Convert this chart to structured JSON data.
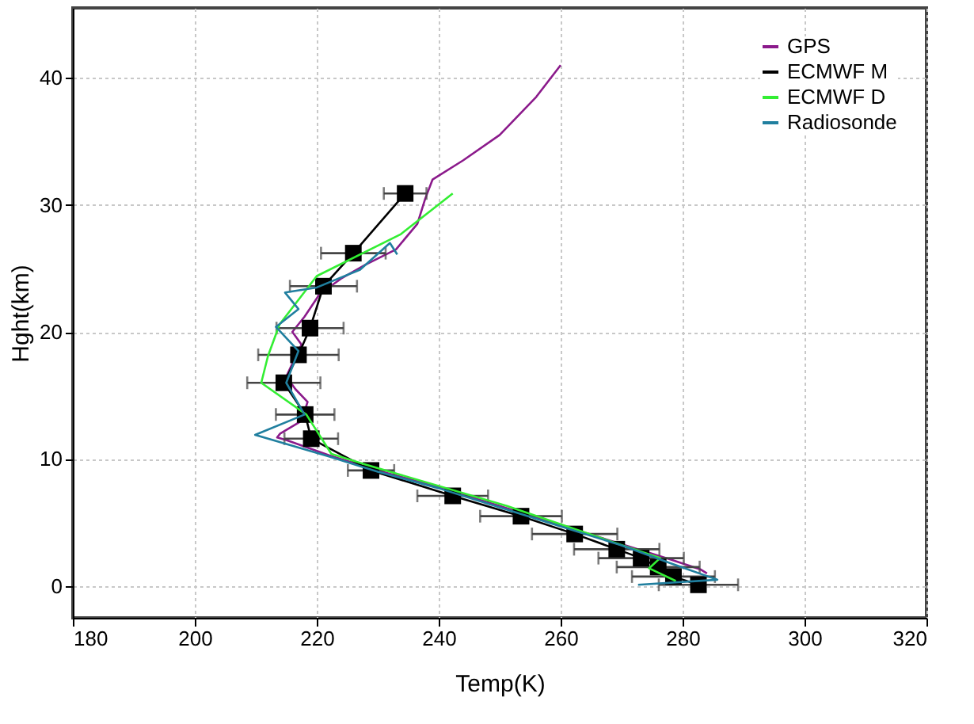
{
  "chart_data": {
    "type": "line",
    "xlabel": "Temp(K)",
    "ylabel": "Hght(km)",
    "xlim": [
      180,
      320
    ],
    "xticks": [
      180,
      200,
      220,
      240,
      260,
      280,
      300,
      320
    ],
    "ylim": [
      -2.5,
      45.5
    ],
    "yticks": [
      0,
      10,
      20,
      30,
      40
    ],
    "grid": true,
    "legend": "top right",
    "line_style": "solid",
    "series": [
      {
        "name": "GPS",
        "color": "#8b1a8b",
        "marker": "none",
        "x": [
          260,
          256,
          250,
          244,
          239,
          237.8,
          236.5,
          233,
          228,
          224,
          220.5,
          218,
          216,
          217.5,
          216.5,
          215,
          216.5,
          218.5,
          217.5,
          214,
          213.5,
          215,
          222,
          230,
          240,
          250,
          260,
          270,
          278,
          283,
          284
        ],
        "values": [
          41,
          38.5,
          35.5,
          33.5,
          32,
          30.5,
          28.5,
          26.5,
          25.3,
          24.2,
          23,
          21.2,
          20,
          19,
          18,
          16.5,
          15.5,
          14.5,
          13,
          12,
          11.7,
          11.5,
          10.3,
          9.1,
          7.8,
          6.3,
          4.8,
          3.3,
          2.1,
          1.3,
          1.0
        ]
      },
      {
        "name": "ECMWF M",
        "color": "#000000",
        "marker": "square",
        "x": [
          234.5,
          226,
          221.1,
          218.9,
          217,
          214.6,
          218.1,
          219.1,
          228.9,
          242.3,
          253.5,
          262.3,
          269.2,
          273.2,
          276,
          278.5,
          282.6
        ],
        "values": [
          30.9,
          26.2,
          23.6,
          20.3,
          18.2,
          16,
          13.5,
          11.6,
          9.1,
          7.1,
          5.5,
          4.1,
          2.9,
          2.2,
          1.5,
          0.75,
          0.1
        ],
        "xerrors": [
          3.5,
          5.3,
          5.5,
          5.5,
          6.6,
          6,
          4.8,
          4.4,
          3.8,
          5.8,
          6.7,
          7,
          7,
          7,
          6.8,
          6.8,
          6.5
        ]
      },
      {
        "name": "ECMWF D",
        "color": "#33ee33",
        "marker": "none",
        "x": [
          242.3,
          233.8,
          220,
          213.9,
          212,
          210.9,
          218.3,
          222.4,
          227.8,
          251.2,
          276.3,
          274.5,
          278.9
        ],
        "values": [
          30.9,
          27.7,
          24.4,
          20.6,
          18.1,
          16,
          13.5,
          10.4,
          9.6,
          6.3,
          2.2,
          1.4,
          0.4
        ]
      },
      {
        "name": "Radiosonde",
        "color": "#207f9f",
        "marker": "none",
        "x": [
          233.2,
          232,
          227.1,
          220,
          214.8,
          217,
          213.3,
          217,
          215,
          218,
          209.9,
          222,
          230,
          240,
          250,
          260,
          270,
          278,
          285.7,
          272.7
        ],
        "values": [
          26.1,
          27,
          24.9,
          23.5,
          23.1,
          21.8,
          20.4,
          18.5,
          16,
          13.5,
          11.9,
          10.2,
          9,
          7.7,
          6.2,
          4.7,
          3.2,
          1.8,
          0.5,
          0.1
        ]
      }
    ]
  }
}
